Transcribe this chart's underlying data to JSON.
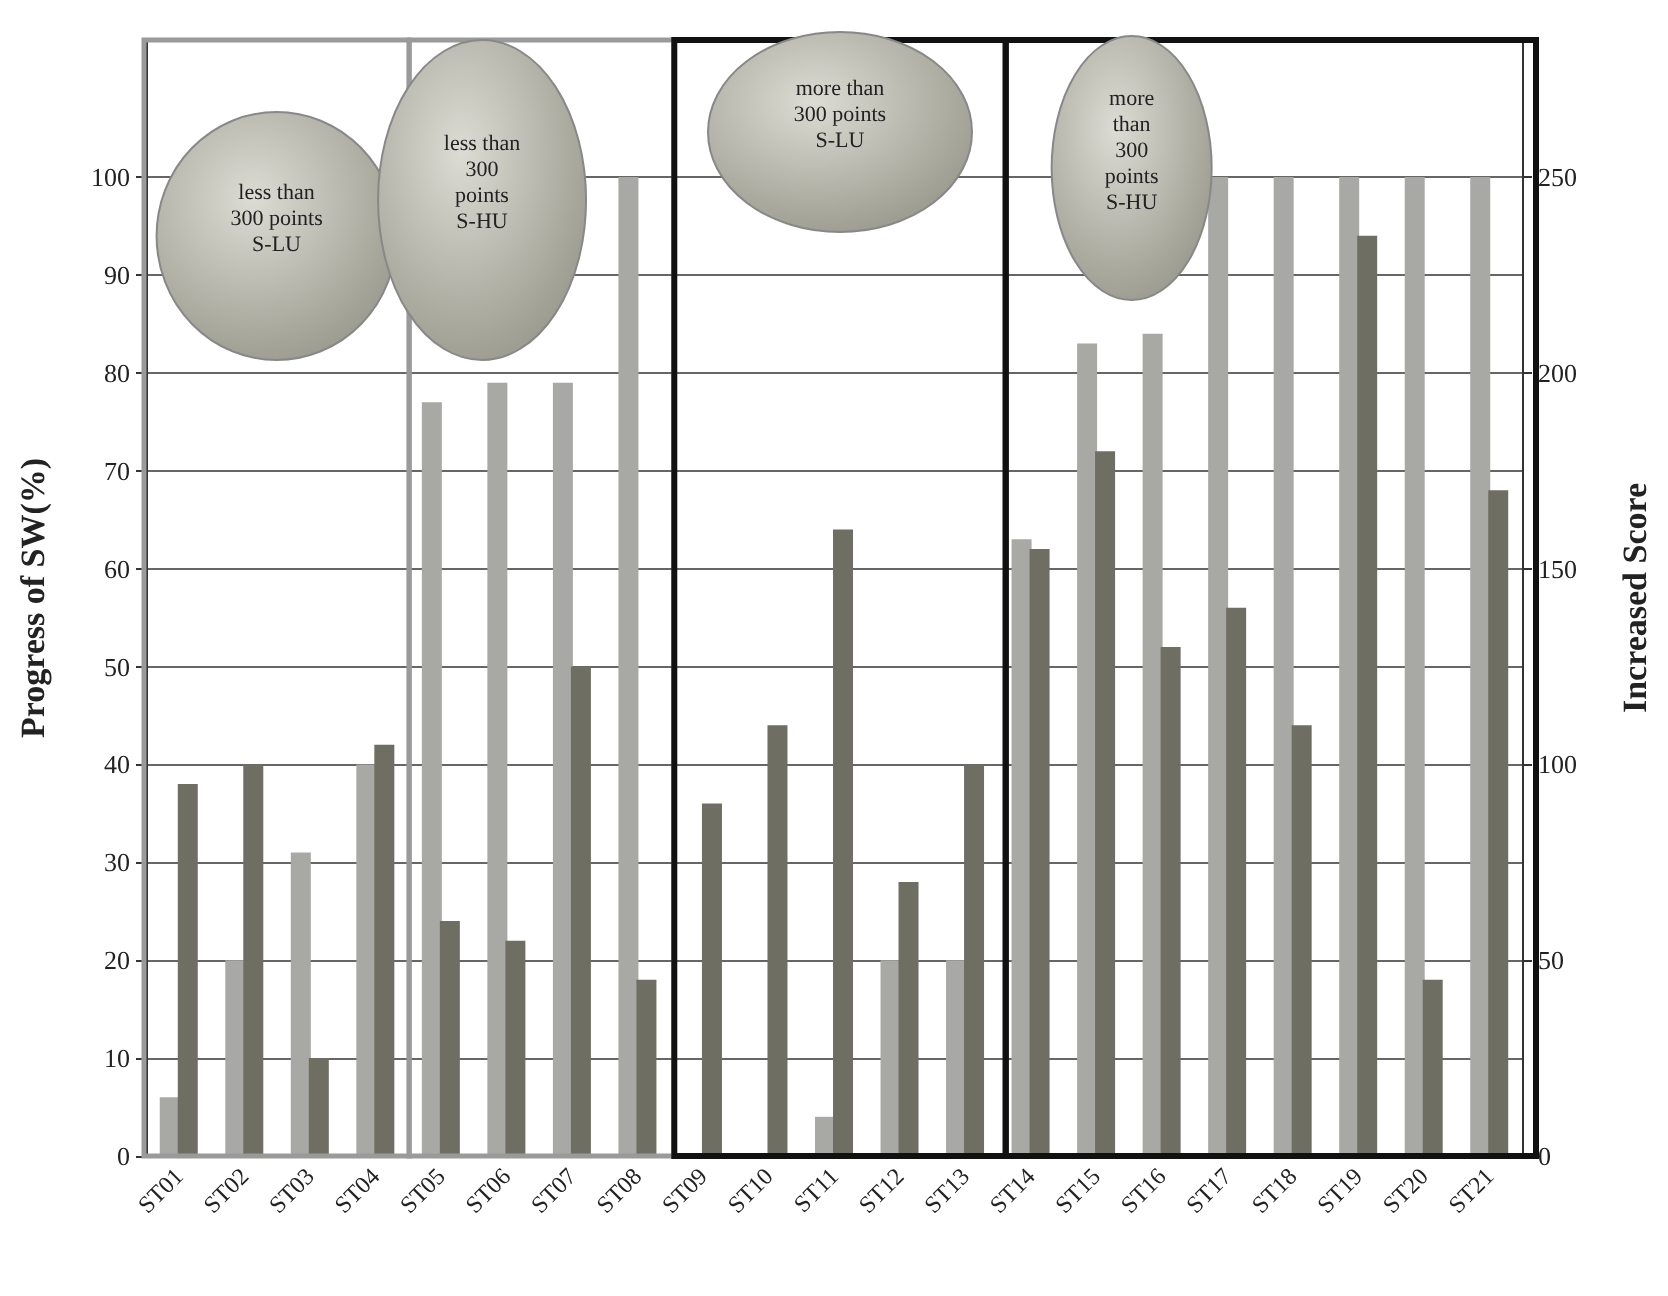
{
  "chart_data": {
    "type": "bar",
    "ylabel": "Progress of SW(%)",
    "y2label": "Increased Score",
    "categories": [
      "ST01",
      "ST02",
      "ST03",
      "ST04",
      "ST05",
      "ST06",
      "ST07",
      "ST08",
      "ST09",
      "ST10",
      "ST11",
      "ST12",
      "ST13",
      "ST14",
      "ST15",
      "ST16",
      "ST17",
      "ST18",
      "ST19",
      "ST20",
      "ST21"
    ],
    "series": [
      {
        "color": "#a8a8a4",
        "values": [
          6,
          20,
          31,
          40,
          77,
          79,
          79,
          100,
          0,
          0,
          4,
          20,
          20,
          63,
          83,
          84,
          100,
          100,
          100,
          100,
          100
        ]
      },
      {
        "color": "#6e6e62",
        "axis": "y2",
        "values": [
          95,
          100,
          25,
          105,
          60,
          55,
          125,
          45,
          90,
          110,
          160,
          70,
          100,
          155,
          180,
          130,
          140,
          110,
          235,
          45,
          170
        ]
      }
    ],
    "ylim": [
      0,
      114
    ],
    "yticks": [
      0,
      10,
      20,
      30,
      40,
      50,
      60,
      70,
      80,
      90,
      100
    ],
    "y2lim": [
      0,
      285
    ],
    "y2ticks": [
      0,
      50,
      100,
      150,
      200,
      250
    ],
    "grid": "y",
    "legend": false,
    "annotations": [
      "less than\n300 points\nS-LU",
      "less than\n300\npoints\nS-HU",
      "more than\n300 points\nS-LU",
      "more\nthan\n300\npoints\nS-HU"
    ]
  }
}
